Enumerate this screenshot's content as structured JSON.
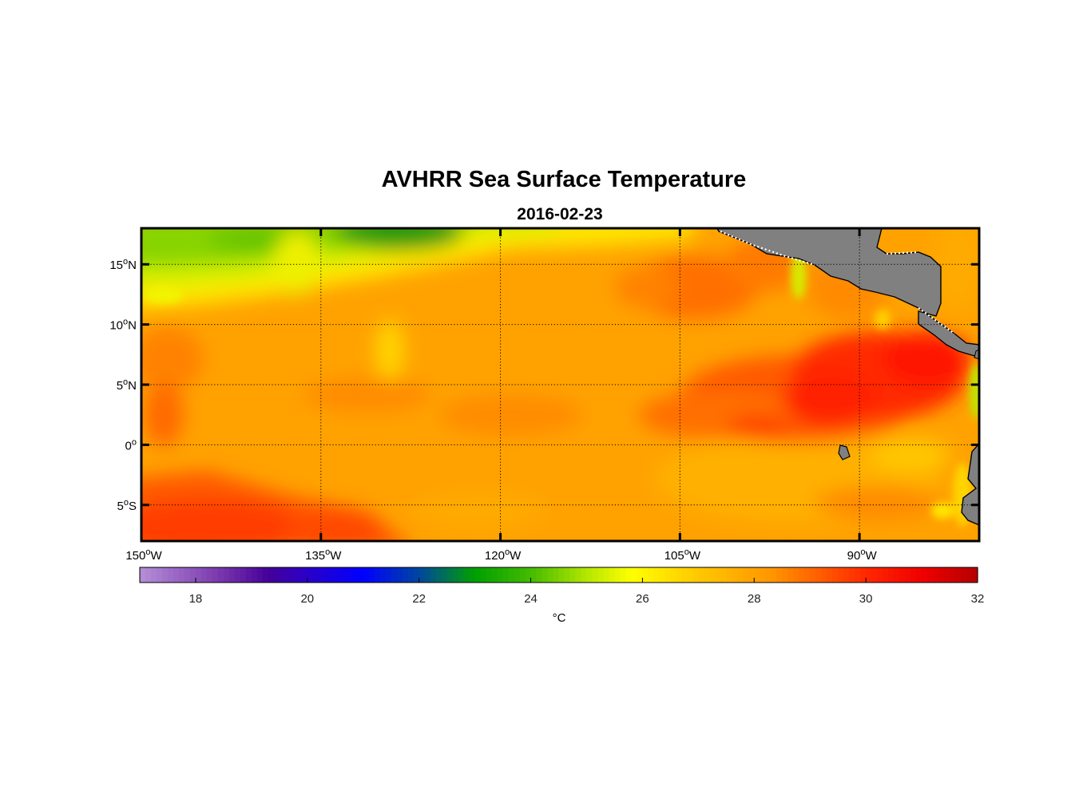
{
  "chart_data": {
    "type": "heatmap",
    "title": "AVHRR Sea Surface Temperature",
    "subtitle": "2016-02-23",
    "map": {
      "lon_range": [
        -150,
        -80
      ],
      "lat_range": [
        -8,
        18
      ],
      "grid": true,
      "lon_ticks": [
        {
          "value": -150,
          "num": "150",
          "dir": "W"
        },
        {
          "value": -135,
          "num": "135",
          "dir": "W"
        },
        {
          "value": -120,
          "num": "120",
          "dir": "W"
        },
        {
          "value": -105,
          "num": "105",
          "dir": "W"
        },
        {
          "value": -90,
          "num": "90",
          "dir": "W"
        }
      ],
      "lat_ticks": [
        {
          "value": 15,
          "num": "15",
          "dir": "N"
        },
        {
          "value": 10,
          "num": "10",
          "dir": "N"
        },
        {
          "value": 5,
          "num": "5",
          "dir": "N"
        },
        {
          "value": 0,
          "num": "0",
          "dir": ""
        },
        {
          "value": -5,
          "num": "5",
          "dir": "S"
        }
      ],
      "degree_symbol": "o",
      "land_color": "#808080"
    },
    "colorbar": {
      "range": [
        17,
        32
      ],
      "ticks": [
        "18",
        "20",
        "22",
        "24",
        "26",
        "28",
        "30",
        "32"
      ],
      "unit": "°C",
      "colormap": [
        {
          "v": 17.0,
          "c": "#b58fd8"
        },
        {
          "v": 18.5,
          "c": "#7733aa"
        },
        {
          "v": 19.3,
          "c": "#440099"
        },
        {
          "v": 20.0,
          "c": "#2a00c8"
        },
        {
          "v": 21.0,
          "c": "#0000ff"
        },
        {
          "v": 22.0,
          "c": "#0046a0"
        },
        {
          "v": 23.0,
          "c": "#00a000"
        },
        {
          "v": 24.0,
          "c": "#44bb00"
        },
        {
          "v": 25.0,
          "c": "#b4e600"
        },
        {
          "v": 25.8,
          "c": "#ffff00"
        },
        {
          "v": 27.0,
          "c": "#ffc800"
        },
        {
          "v": 28.3,
          "c": "#ff9600"
        },
        {
          "v": 30.0,
          "c": "#ff2800"
        },
        {
          "v": 31.0,
          "c": "#f00000"
        },
        {
          "v": 32.0,
          "c": "#b40000"
        }
      ]
    }
  }
}
